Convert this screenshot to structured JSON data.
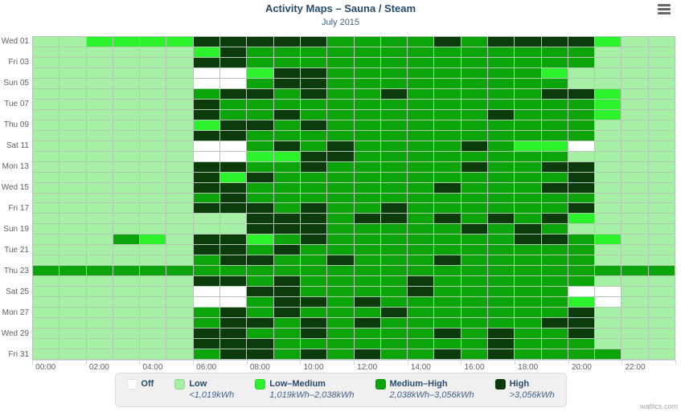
{
  "header": {
    "title": "Activity Maps – Sauna / Steam",
    "subtitle": "July 2015",
    "menu_icon": "hamburger-icon"
  },
  "watermark": "wattics.com",
  "colors": {
    "off": "#ffffff",
    "low": "#a5f0a5",
    "low_medium": "#2bf22b",
    "medium_high": "#0ba50b",
    "high": "#0b3a0b",
    "grid_border": "#b5c8b5",
    "title_text": "#274b6d",
    "axis_text": "#606060",
    "legend_bg": "#f0f0f0"
  },
  "legend": {
    "items": [
      {
        "name": "Off",
        "range": "",
        "level": 0,
        "color": "#ffffff"
      },
      {
        "name": "Low",
        "range": "<1,019kWh",
        "level": 1,
        "color": "#a5f0a5"
      },
      {
        "name": "Low–Medium",
        "range": "1,019kWh–2,038kWh",
        "level": 2,
        "color": "#2bf22b"
      },
      {
        "name": "Medium–High",
        "range": "2,038kWh–3,056kWh",
        "level": 3,
        "color": "#0ba50b"
      },
      {
        "name": "High",
        "range": ">3,056kWh",
        "level": 4,
        "color": "#0b3a0b"
      }
    ]
  },
  "chart_data": {
    "type": "heatmap",
    "title": "Activity Maps – Sauna / Steam",
    "subtitle": "July 2015",
    "xlabel": "",
    "ylabel": "",
    "x_categories": [
      "00:00",
      "01:00",
      "02:00",
      "03:00",
      "04:00",
      "05:00",
      "06:00",
      "07:00",
      "08:00",
      "09:00",
      "10:00",
      "11:00",
      "12:00",
      "13:00",
      "14:00",
      "15:00",
      "16:00",
      "17:00",
      "18:00",
      "19:00",
      "20:00",
      "21:00",
      "22:00",
      "23:00"
    ],
    "x_tick_labels": [
      "00:00",
      "02:00",
      "04:00",
      "06:00",
      "08:00",
      "10:00",
      "12:00",
      "14:00",
      "16:00",
      "18:00",
      "20:00",
      "22:00"
    ],
    "y_categories": [
      "Wed 01",
      "Thu 02",
      "Fri 03",
      "Sat 04",
      "Sun 05",
      "Mon 06",
      "Tue 07",
      "Wed 08",
      "Thu 09",
      "Fri 10",
      "Sat 11",
      "Sun 12",
      "Mon 13",
      "Tue 14",
      "Wed 15",
      "Thu 16",
      "Fri 17",
      "Sat 18",
      "Sun 19",
      "Mon 20",
      "Tue 21",
      "Wed 22",
      "Thu 23",
      "Fri 24",
      "Sat 25",
      "Sun 26",
      "Mon 27",
      "Tue 28",
      "Wed 29",
      "Thu 30",
      "Fri 31"
    ],
    "y_tick_labels": [
      "Wed 01",
      "Fri 03",
      "Sun 05",
      "Tue 07",
      "Thu 09",
      "Sat 11",
      "Mon 13",
      "Wed 15",
      "Fri 17",
      "Sun 19",
      "Tue 21",
      "Thu 23",
      "Sat 25",
      "Mon 27",
      "Wed 29",
      "Fri 31"
    ],
    "levels": [
      "Off",
      "Low",
      "Low–Medium",
      "Medium–High",
      "High"
    ],
    "level_ranges": [
      "",
      "<1,019kWh",
      "1,019kWh–2,038kWh",
      "2,038kWh–3,056kWh",
      ">3,056kWh"
    ],
    "grid": true,
    "legend_position": "bottom",
    "matrix": [
      [
        1,
        1,
        2,
        2,
        2,
        2,
        4,
        4,
        4,
        4,
        4,
        3,
        3,
        3,
        3,
        4,
        3,
        4,
        4,
        4,
        4,
        2,
        1,
        1
      ],
      [
        1,
        1,
        1,
        1,
        1,
        1,
        2,
        4,
        3,
        3,
        3,
        3,
        3,
        3,
        3,
        3,
        3,
        3,
        3,
        3,
        3,
        1,
        1,
        1
      ],
      [
        1,
        1,
        1,
        1,
        1,
        1,
        4,
        4,
        3,
        3,
        3,
        3,
        3,
        3,
        3,
        3,
        3,
        3,
        3,
        3,
        3,
        1,
        1,
        1
      ],
      [
        1,
        1,
        1,
        1,
        1,
        1,
        0,
        0,
        2,
        4,
        4,
        3,
        3,
        3,
        3,
        3,
        3,
        3,
        3,
        2,
        1,
        1,
        1,
        1
      ],
      [
        1,
        1,
        1,
        1,
        1,
        1,
        0,
        0,
        3,
        4,
        4,
        3,
        3,
        3,
        3,
        3,
        3,
        3,
        3,
        3,
        1,
        1,
        1,
        1
      ],
      [
        1,
        1,
        1,
        1,
        1,
        1,
        3,
        4,
        4,
        3,
        4,
        3,
        3,
        4,
        3,
        3,
        3,
        3,
        3,
        4,
        4,
        2,
        1,
        1
      ],
      [
        1,
        1,
        1,
        1,
        1,
        1,
        4,
        3,
        3,
        3,
        3,
        3,
        3,
        3,
        3,
        3,
        3,
        3,
        3,
        3,
        3,
        2,
        1,
        1
      ],
      [
        1,
        1,
        1,
        1,
        1,
        1,
        4,
        3,
        3,
        4,
        3,
        3,
        3,
        3,
        3,
        3,
        3,
        4,
        3,
        3,
        3,
        2,
        1,
        1
      ],
      [
        1,
        1,
        1,
        1,
        1,
        1,
        2,
        4,
        4,
        3,
        4,
        3,
        3,
        3,
        3,
        3,
        3,
        3,
        3,
        3,
        3,
        1,
        1,
        1
      ],
      [
        1,
        1,
        1,
        1,
        1,
        1,
        4,
        4,
        3,
        3,
        3,
        3,
        3,
        3,
        3,
        3,
        3,
        3,
        3,
        3,
        3,
        1,
        1,
        1
      ],
      [
        1,
        1,
        1,
        1,
        1,
        1,
        0,
        0,
        3,
        4,
        3,
        4,
        3,
        3,
        3,
        3,
        4,
        3,
        2,
        2,
        0,
        1,
        1,
        1
      ],
      [
        1,
        1,
        1,
        1,
        1,
        1,
        0,
        0,
        2,
        2,
        4,
        4,
        3,
        3,
        3,
        3,
        3,
        3,
        3,
        3,
        1,
        1,
        1,
        1
      ],
      [
        1,
        1,
        1,
        1,
        1,
        1,
        4,
        4,
        3,
        3,
        4,
        3,
        3,
        3,
        3,
        3,
        4,
        3,
        3,
        4,
        4,
        1,
        1,
        1
      ],
      [
        1,
        1,
        1,
        1,
        1,
        1,
        4,
        2,
        4,
        3,
        3,
        3,
        3,
        3,
        3,
        3,
        3,
        3,
        3,
        3,
        4,
        1,
        1,
        1
      ],
      [
        1,
        1,
        1,
        1,
        1,
        1,
        4,
        4,
        3,
        3,
        3,
        3,
        3,
        3,
        3,
        4,
        3,
        3,
        3,
        4,
        4,
        1,
        1,
        1
      ],
      [
        1,
        1,
        1,
        1,
        1,
        1,
        3,
        4,
        3,
        3,
        3,
        3,
        3,
        3,
        3,
        3,
        3,
        3,
        3,
        3,
        3,
        1,
        1,
        1
      ],
      [
        1,
        1,
        1,
        1,
        1,
        1,
        4,
        4,
        4,
        3,
        4,
        3,
        3,
        4,
        3,
        3,
        3,
        3,
        3,
        3,
        4,
        1,
        1,
        1
      ],
      [
        1,
        1,
        1,
        1,
        1,
        1,
        1,
        1,
        4,
        4,
        4,
        3,
        4,
        4,
        3,
        4,
        3,
        4,
        3,
        4,
        2,
        1,
        1,
        1
      ],
      [
        1,
        1,
        1,
        1,
        1,
        1,
        1,
        1,
        4,
        4,
        4,
        3,
        3,
        3,
        3,
        3,
        4,
        3,
        4,
        3,
        1,
        1,
        1,
        1
      ],
      [
        1,
        1,
        1,
        3,
        2,
        1,
        4,
        4,
        2,
        3,
        4,
        3,
        3,
        3,
        3,
        3,
        3,
        3,
        4,
        4,
        3,
        2,
        1,
        1
      ],
      [
        1,
        1,
        1,
        1,
        1,
        1,
        4,
        4,
        3,
        4,
        3,
        3,
        3,
        3,
        3,
        3,
        3,
        3,
        3,
        3,
        3,
        1,
        1,
        1
      ],
      [
        1,
        1,
        1,
        1,
        1,
        1,
        3,
        4,
        4,
        3,
        3,
        4,
        3,
        3,
        3,
        4,
        3,
        3,
        3,
        3,
        3,
        1,
        1,
        1
      ],
      [
        3,
        3,
        3,
        3,
        3,
        3,
        3,
        3,
        3,
        3,
        3,
        3,
        3,
        3,
        3,
        3,
        3,
        3,
        3,
        3,
        3,
        3,
        3,
        3
      ],
      [
        1,
        1,
        1,
        1,
        1,
        1,
        4,
        4,
        3,
        4,
        3,
        3,
        3,
        3,
        4,
        3,
        3,
        3,
        3,
        3,
        3,
        1,
        1,
        1
      ],
      [
        1,
        1,
        1,
        1,
        1,
        1,
        0,
        0,
        4,
        4,
        3,
        3,
        3,
        3,
        4,
        3,
        3,
        3,
        3,
        3,
        0,
        0,
        1,
        1
      ],
      [
        1,
        1,
        1,
        1,
        1,
        1,
        0,
        0,
        3,
        4,
        4,
        3,
        4,
        3,
        3,
        3,
        3,
        3,
        3,
        3,
        2,
        0,
        1,
        1
      ],
      [
        1,
        1,
        1,
        1,
        1,
        1,
        3,
        4,
        3,
        4,
        3,
        3,
        3,
        4,
        3,
        3,
        3,
        3,
        3,
        3,
        4,
        1,
        1,
        1
      ],
      [
        1,
        1,
        1,
        1,
        1,
        1,
        3,
        4,
        4,
        3,
        4,
        3,
        4,
        3,
        3,
        3,
        3,
        3,
        3,
        4,
        4,
        1,
        1,
        1
      ],
      [
        1,
        1,
        1,
        1,
        1,
        1,
        4,
        4,
        3,
        3,
        4,
        3,
        3,
        3,
        3,
        4,
        3,
        4,
        3,
        3,
        4,
        1,
        1,
        1
      ],
      [
        1,
        1,
        1,
        1,
        1,
        1,
        4,
        4,
        4,
        3,
        3,
        3,
        3,
        3,
        3,
        3,
        3,
        4,
        3,
        3,
        3,
        1,
        1,
        1
      ],
      [
        1,
        1,
        1,
        1,
        1,
        1,
        3,
        4,
        4,
        3,
        4,
        3,
        4,
        3,
        3,
        4,
        3,
        4,
        3,
        3,
        3,
        3,
        1,
        1
      ]
    ]
  }
}
